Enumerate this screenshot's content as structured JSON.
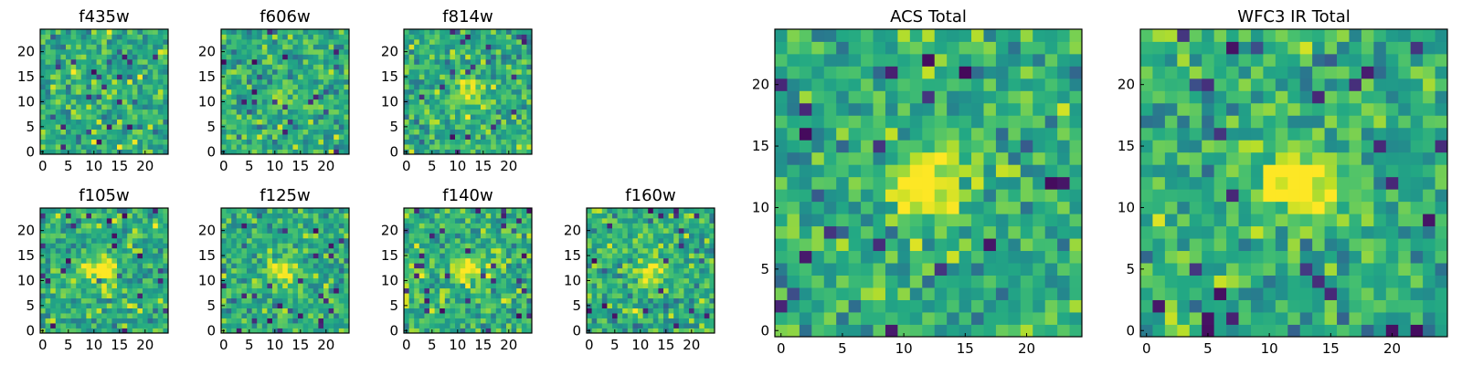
{
  "chart_data": [
    {
      "type": "heatmap",
      "title": "f435w",
      "grid_size": 25,
      "xlim": [
        0,
        24
      ],
      "ylim": [
        0,
        24
      ],
      "xticks": [
        0,
        5,
        10,
        15,
        20
      ],
      "yticks": [
        0,
        5,
        10,
        15,
        20
      ],
      "colormap": "viridis",
      "source_peak": 0.1,
      "seed": 11,
      "gauss_scale": 0
    },
    {
      "type": "heatmap",
      "title": "f606w",
      "grid_size": 25,
      "xlim": [
        0,
        24
      ],
      "ylim": [
        0,
        24
      ],
      "xticks": [
        0,
        5,
        10,
        15,
        20
      ],
      "yticks": [
        0,
        5,
        10,
        15,
        20
      ],
      "colormap": "viridis",
      "source_peak": 0.15,
      "seed": 23,
      "gauss_scale": 0
    },
    {
      "type": "heatmap",
      "title": "f814w",
      "grid_size": 25,
      "xlim": [
        0,
        24
      ],
      "ylim": [
        0,
        24
      ],
      "xticks": [
        0,
        5,
        10,
        15,
        20
      ],
      "yticks": [
        0,
        5,
        10,
        15,
        20
      ],
      "colormap": "viridis",
      "source_peak": 0.35,
      "seed": 37,
      "gauss_scale": 0
    },
    {
      "type": "heatmap",
      "title": "f105w",
      "grid_size": 25,
      "xlim": [
        0,
        24
      ],
      "ylim": [
        0,
        24
      ],
      "xticks": [
        0,
        5,
        10,
        15,
        20
      ],
      "yticks": [
        0,
        5,
        10,
        15,
        20
      ],
      "colormap": "viridis",
      "source_peak": 0.45,
      "seed": 41,
      "gauss_scale": 0
    },
    {
      "type": "heatmap",
      "title": "f125w",
      "grid_size": 25,
      "xlim": [
        0,
        24
      ],
      "ylim": [
        0,
        24
      ],
      "xticks": [
        0,
        5,
        10,
        15,
        20
      ],
      "yticks": [
        0,
        5,
        10,
        15,
        20
      ],
      "colormap": "viridis",
      "source_peak": 0.35,
      "seed": 53,
      "gauss_scale": 0
    },
    {
      "type": "heatmap",
      "title": "f140w",
      "grid_size": 25,
      "xlim": [
        0,
        24
      ],
      "ylim": [
        0,
        24
      ],
      "xticks": [
        0,
        5,
        10,
        15,
        20
      ],
      "yticks": [
        0,
        5,
        10,
        15,
        20
      ],
      "colormap": "viridis",
      "source_peak": 0.35,
      "seed": 67,
      "gauss_scale": 0
    },
    {
      "type": "heatmap",
      "title": "f160w",
      "grid_size": 25,
      "xlim": [
        0,
        24
      ],
      "ylim": [
        0,
        24
      ],
      "xticks": [
        0,
        5,
        10,
        15,
        20
      ],
      "yticks": [
        0,
        5,
        10,
        15,
        20
      ],
      "colormap": "viridis",
      "source_peak": 0.3,
      "seed": 79,
      "gauss_scale": 0
    },
    {
      "type": "heatmap",
      "title": "ACS Total",
      "grid_size": 25,
      "xlim": [
        0,
        24
      ],
      "ylim": [
        0,
        24
      ],
      "xticks": [
        0,
        5,
        10,
        15,
        20
      ],
      "yticks": [
        0,
        5,
        10,
        15,
        20
      ],
      "colormap": "viridis",
      "source_peak": 0.45,
      "seed": 97,
      "gauss_scale": 0
    },
    {
      "type": "heatmap",
      "title": "WFC3 IR Total",
      "grid_size": 25,
      "xlim": [
        0,
        24
      ],
      "ylim": [
        0,
        24
      ],
      "xticks": [
        0,
        5,
        10,
        15,
        20
      ],
      "yticks": [
        0,
        5,
        10,
        15,
        20
      ],
      "colormap": "viridis",
      "source_peak": 0.55,
      "seed": 113,
      "gauss_scale": 0
    }
  ]
}
